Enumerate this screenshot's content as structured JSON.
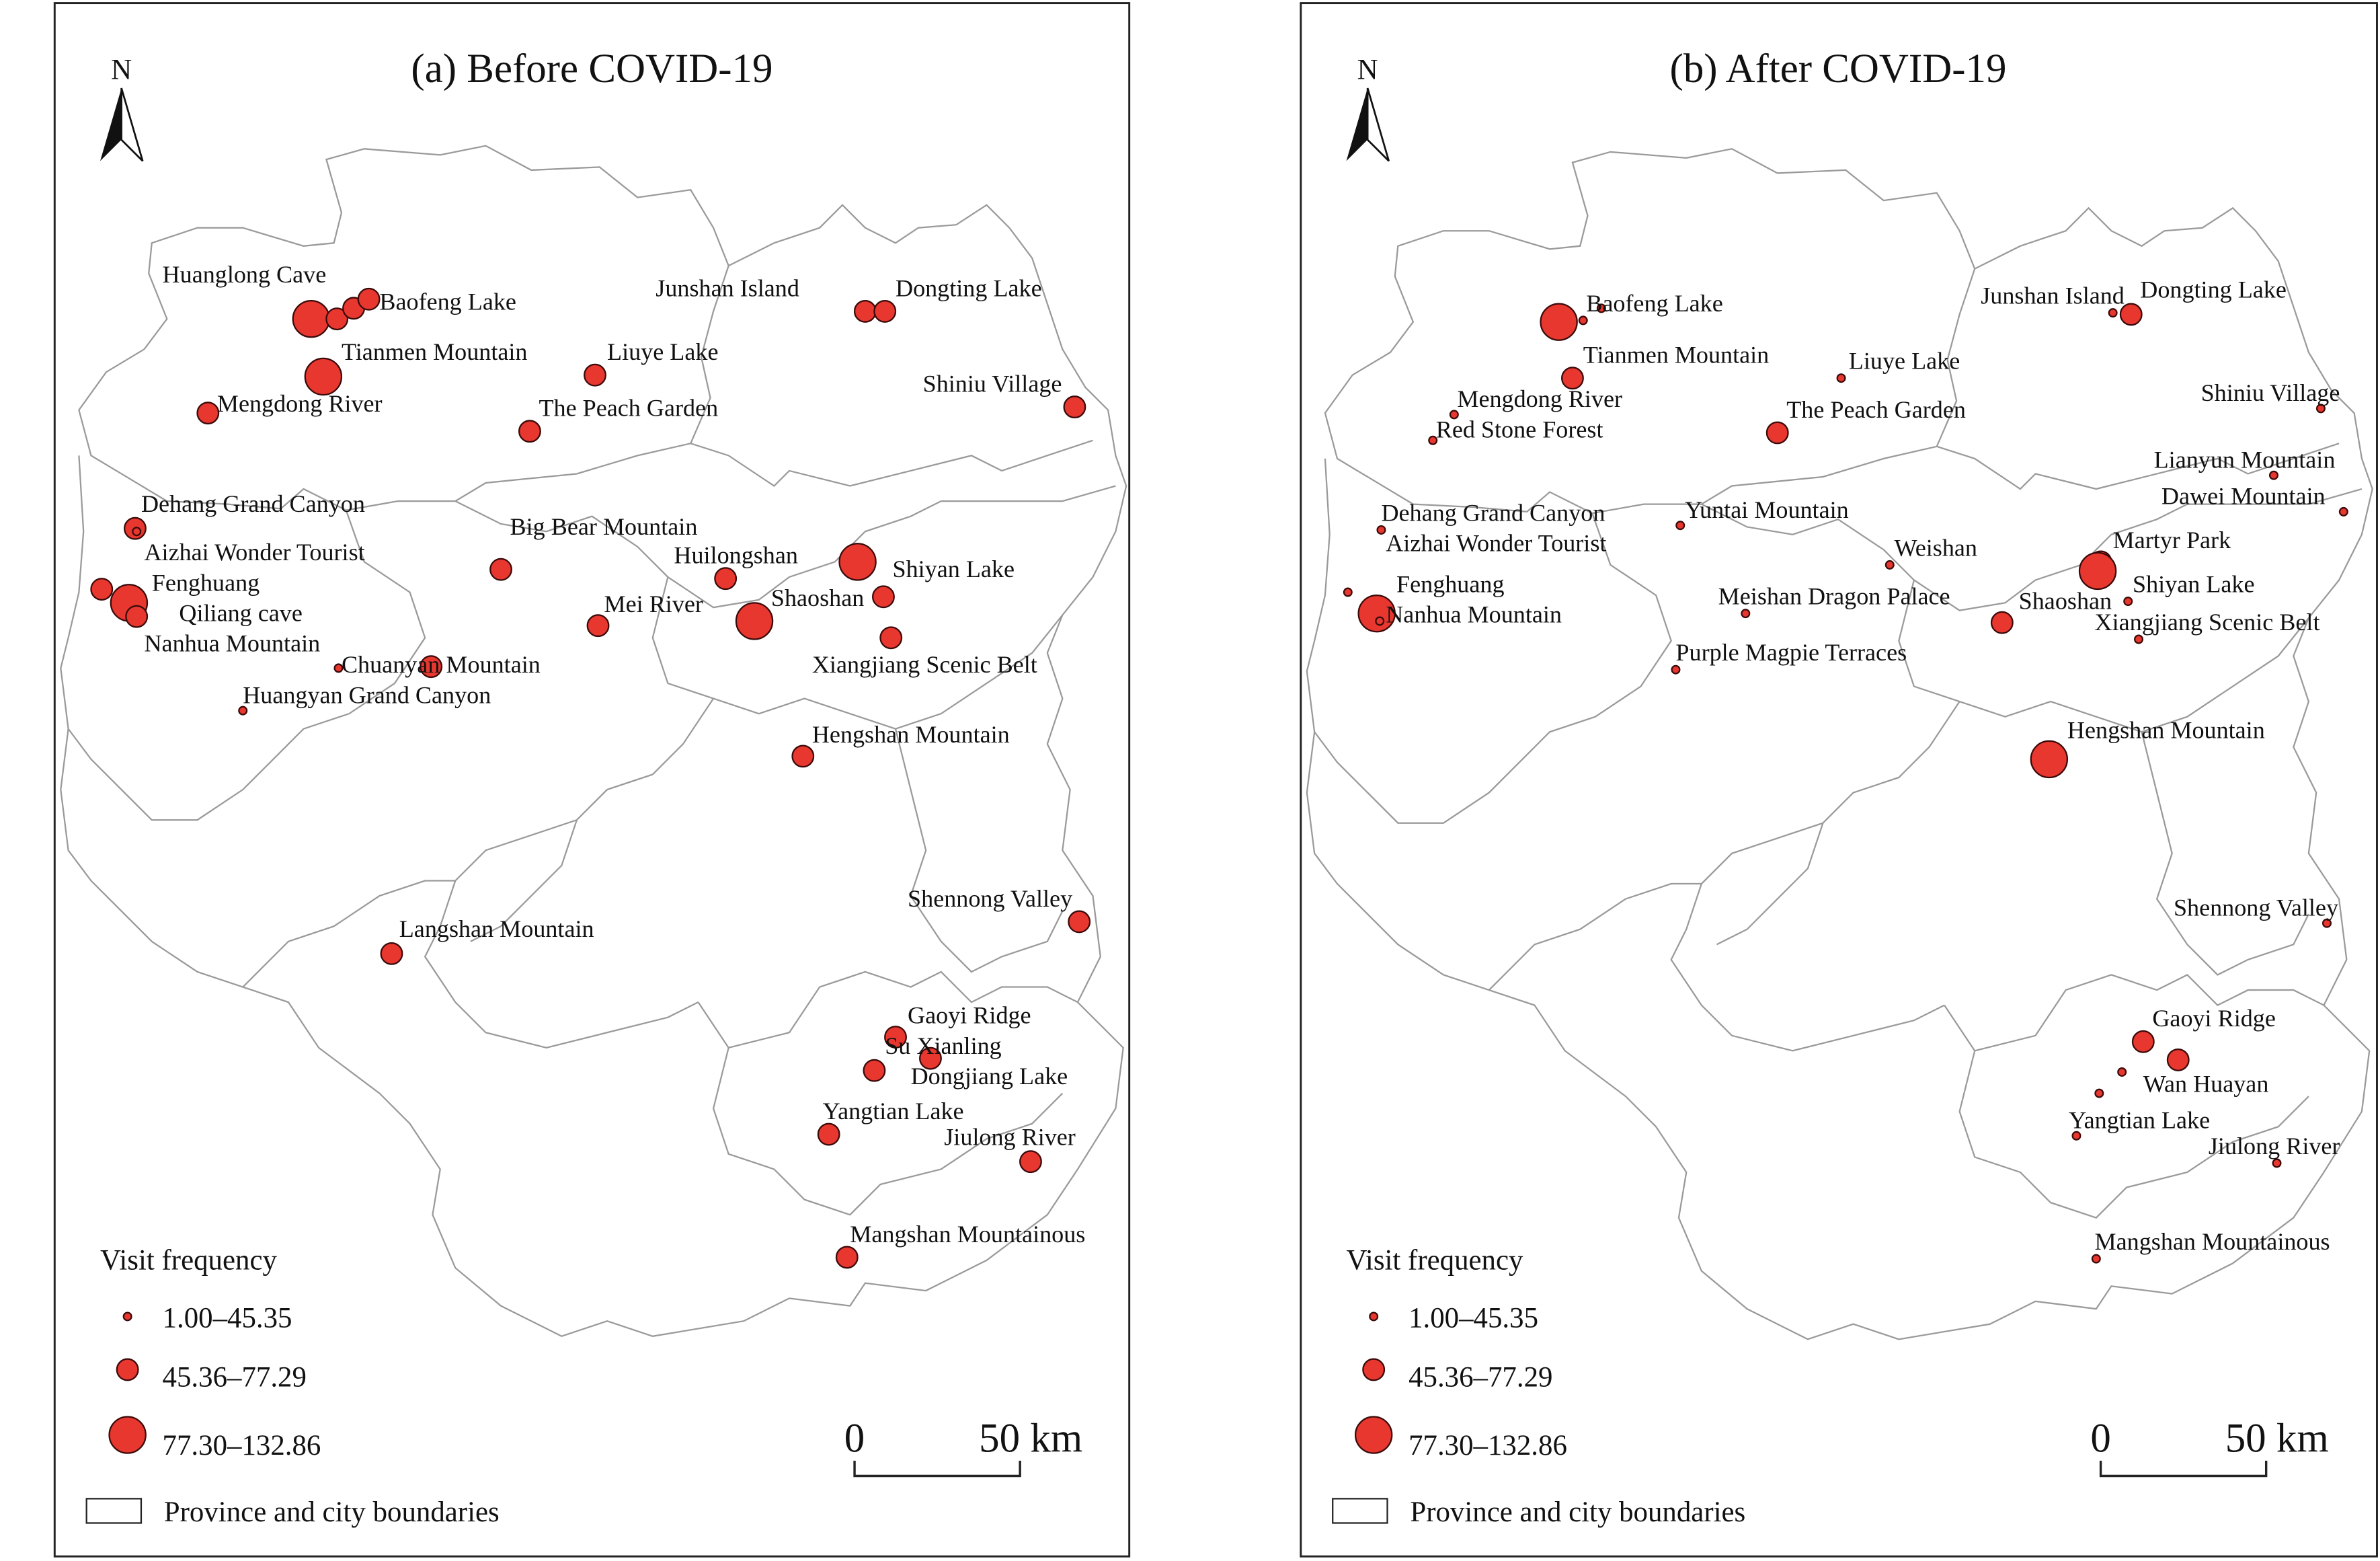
{
  "panels": [
    {
      "title": "(a) Before COVID-19",
      "north": "N",
      "places": [
        "Huanglong Cave",
        "Baofeng Lake",
        "Tianmen Mountain",
        "Mengdong River",
        "Liuye Lake",
        "The Peach Garden",
        "Junshan Island",
        "Dongting Lake",
        "Shiniu Village",
        "Dehang Grand Canyon",
        "Aizhai Wonder Tourist",
        "Fenghuang",
        "Qiliang cave",
        "Nanhua Mountain",
        "Big Bear Mountain",
        "Huilongshan",
        "Shiyan Lake",
        "Mei River",
        "Shaoshan",
        "Xiangjiang Scenic Belt",
        "Chuanyan Mountain",
        "Huangyan Grand Canyon",
        "Hengshan Mountain",
        "Shennong Valley",
        "Langshan Mountain",
        "Gaoyi Ridge",
        "Su Xianling",
        "Dongjiang Lake",
        "Yangtian Lake",
        "Jiulong River",
        "Mangshan Mountainous"
      ],
      "legend": {
        "title": "Visit frequency",
        "classes": [
          "1.00–45.35",
          "45.36–77.29",
          "77.30–132.86"
        ],
        "boundary": "Province and city boundaries"
      },
      "scale_bar": [
        "0",
        "50 km"
      ]
    },
    {
      "title": "(b) After COVID-19",
      "north": "N",
      "places": [
        "Baofeng Lake",
        "Tianmen Mountain",
        "Mengdong River",
        "Red Stone Forest",
        "Liuye Lake",
        "The Peach Garden",
        "Junshan Island",
        "Dongting Lake",
        "Shiniu Village",
        "Lianyun Mountain",
        "Dawei Mountain",
        "Dehang Grand Canyon",
        "Aizhai Wonder Tourist",
        "Yuntai Mountain",
        "Weishan",
        "Martyr Park",
        "Fenghuang",
        "Nanhua Mountain",
        "Meishan Dragon Palace",
        "Shaoshan",
        "Shiyan Lake",
        "Xiangjiang Scenic Belt",
        "Purple Magpie Terraces",
        "Hengshan Mountain",
        "Shennong Valley",
        "Gaoyi Ridge",
        "Wan Huayan",
        "Yangtian Lake",
        "Jiulong River",
        "Mangshan Mountainous"
      ],
      "legend": {
        "title": "Visit frequency",
        "classes": [
          "1.00–45.35",
          "45.36–77.29",
          "77.30–132.86"
        ],
        "boundary": "Province and city boundaries"
      },
      "scale_bar": [
        "0",
        "50 km"
      ]
    }
  ]
}
